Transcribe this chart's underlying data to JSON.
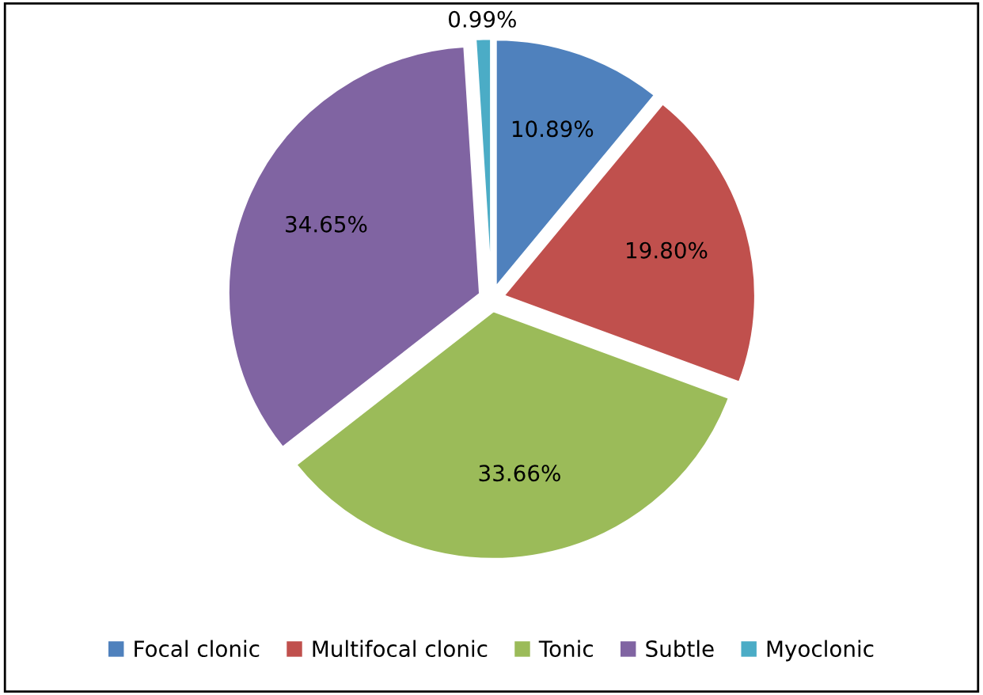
{
  "chart_data": {
    "type": "pie",
    "categories": [
      "Focal clonic",
      "Multifocal clonic",
      "Tonic",
      "Subtle",
      "Myoclonic"
    ],
    "values": [
      10.89,
      19.8,
      33.66,
      34.65,
      0.99
    ],
    "value_labels": [
      "10.89%",
      "19.80%",
      "33.66%",
      "34.65%",
      "0.99%"
    ],
    "colors": [
      "#4f81bd",
      "#c0504d",
      "#9bbb59",
      "#8064a2",
      "#4bacc6"
    ],
    "legend": "bottom"
  }
}
